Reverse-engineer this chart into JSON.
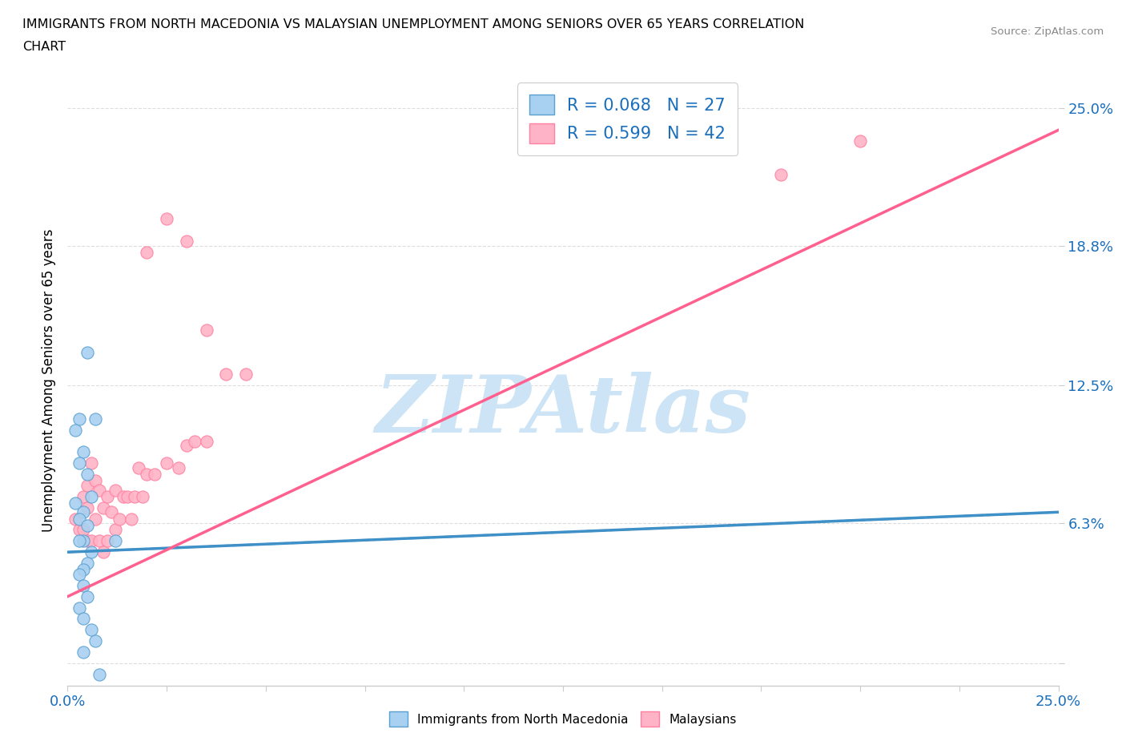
{
  "title_line1": "IMMIGRANTS FROM NORTH MACEDONIA VS MALAYSIAN UNEMPLOYMENT AMONG SENIORS OVER 65 YEARS CORRELATION",
  "title_line2": "CHART",
  "source": "Source: ZipAtlas.com",
  "ylabel": "Unemployment Among Seniors over 65 years",
  "xlim": [
    0.0,
    0.25
  ],
  "ylim": [
    -0.01,
    0.265
  ],
  "yticks": [
    0.0,
    0.063,
    0.125,
    0.188,
    0.25
  ],
  "ytick_labels": [
    "",
    "6.3%",
    "12.5%",
    "18.8%",
    "25.0%"
  ],
  "blue_R": 0.068,
  "blue_N": 27,
  "pink_R": 0.599,
  "pink_N": 42,
  "blue_color": "#a8d0f0",
  "pink_color": "#ffb3c6",
  "blue_edge_color": "#5aa0d0",
  "pink_edge_color": "#ff80a0",
  "blue_trend_color": "#4090c8",
  "pink_trend_color": "#ff6090",
  "blue_trend_dash_color": "#80b8e8",
  "legend_color": "#1a6fbd",
  "blue_scatter_x": [
    0.005,
    0.007,
    0.003,
    0.002,
    0.004,
    0.003,
    0.005,
    0.006,
    0.002,
    0.004,
    0.003,
    0.005,
    0.004,
    0.003,
    0.006,
    0.005,
    0.004,
    0.003,
    0.004,
    0.005,
    0.003,
    0.004,
    0.006,
    0.007,
    0.004,
    0.008,
    0.012
  ],
  "blue_scatter_y": [
    0.14,
    0.11,
    0.11,
    0.105,
    0.095,
    0.09,
    0.085,
    0.075,
    0.072,
    0.068,
    0.065,
    0.062,
    0.055,
    0.055,
    0.05,
    0.045,
    0.042,
    0.04,
    0.035,
    0.03,
    0.025,
    0.02,
    0.015,
    0.01,
    0.005,
    -0.005,
    0.055
  ],
  "pink_scatter_x": [
    0.002,
    0.003,
    0.004,
    0.004,
    0.005,
    0.005,
    0.005,
    0.006,
    0.006,
    0.007,
    0.007,
    0.008,
    0.008,
    0.009,
    0.009,
    0.01,
    0.01,
    0.011,
    0.012,
    0.012,
    0.013,
    0.014,
    0.015,
    0.016,
    0.017,
    0.018,
    0.019,
    0.02,
    0.022,
    0.025,
    0.028,
    0.03,
    0.032,
    0.035,
    0.02,
    0.025,
    0.03,
    0.035,
    0.04,
    0.045,
    0.18,
    0.2
  ],
  "pink_scatter_y": [
    0.065,
    0.06,
    0.075,
    0.06,
    0.08,
    0.07,
    0.055,
    0.09,
    0.055,
    0.082,
    0.065,
    0.078,
    0.055,
    0.07,
    0.05,
    0.075,
    0.055,
    0.068,
    0.078,
    0.06,
    0.065,
    0.075,
    0.075,
    0.065,
    0.075,
    0.088,
    0.075,
    0.085,
    0.085,
    0.09,
    0.088,
    0.098,
    0.1,
    0.1,
    0.185,
    0.2,
    0.19,
    0.15,
    0.13,
    0.13,
    0.22,
    0.235
  ],
  "blue_trend_start_y": 0.05,
  "blue_trend_end_y": 0.068,
  "pink_trend_start_y": 0.03,
  "pink_trend_end_y": 0.24,
  "watermark_text": "ZIPAtlas",
  "watermark_color": "#cce4f5",
  "watermark_font": "DejaVu Serif",
  "grid_color": "#dddddd",
  "spine_color": "#cccccc"
}
